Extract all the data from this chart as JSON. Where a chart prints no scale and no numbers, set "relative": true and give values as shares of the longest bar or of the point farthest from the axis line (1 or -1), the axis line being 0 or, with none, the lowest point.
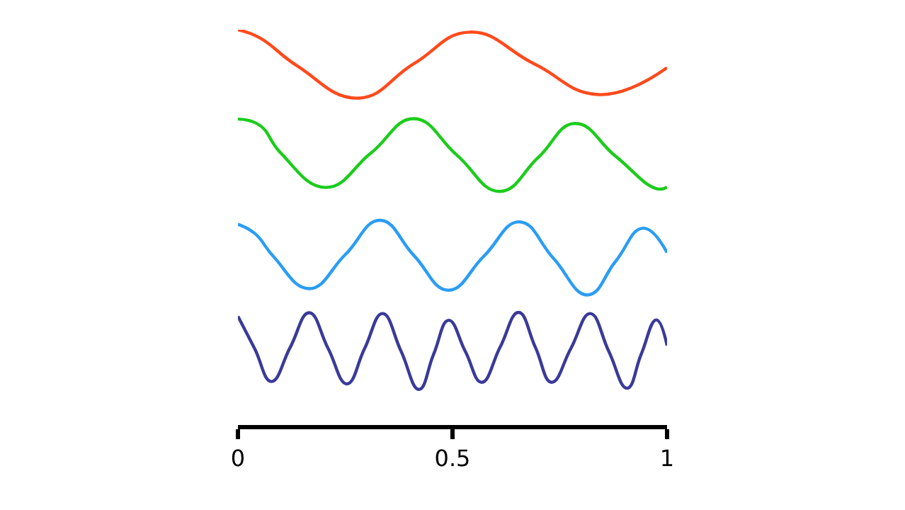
{
  "chart_data": {
    "type": "line",
    "relative": true,
    "xlim": [
      0,
      1
    ],
    "xticks": [
      0,
      0.5,
      1
    ],
    "tick_labels": "x",
    "series": [
      {
        "color": "#ff4a1c",
        "x": [
          0,
          0.05,
          0.139,
          0.28,
          0.41,
          0.54,
          0.69,
          0.84,
          1.0
        ],
        "values": [
          1.0,
          0.98,
          0.908,
          0.827,
          0.914,
          0.994,
          0.914,
          0.836,
          0.904
        ]
      },
      {
        "color": "#1ccc1c",
        "x": [
          0,
          0.05,
          0.1,
          0.205,
          0.31,
          0.41,
          0.51,
          0.61,
          0.7,
          0.785,
          0.88,
          0.975,
          1.0
        ],
        "values": [
          0.774,
          0.759,
          0.688,
          0.601,
          0.688,
          0.775,
          0.683,
          0.591,
          0.677,
          0.763,
          0.68,
          0.598,
          0.602
        ]
      },
      {
        "color": "#2a9df4",
        "x": [
          0,
          0.04,
          0.083,
          0.166,
          0.25,
          0.331,
          0.41,
          0.49,
          0.573,
          0.656,
          0.735,
          0.815,
          0.88,
          0.944,
          1.0
        ],
        "values": [
          0.508,
          0.484,
          0.426,
          0.345,
          0.431,
          0.518,
          0.429,
          0.341,
          0.427,
          0.514,
          0.422,
          0.329,
          0.414,
          0.498,
          0.436
        ]
      },
      {
        "color": "#3a3a9a",
        "x": [
          0,
          0.039,
          0.078,
          0.122,
          0.166,
          0.21,
          0.254,
          0.295,
          0.337,
          0.38,
          0.422,
          0.456,
          0.491,
          0.53,
          0.568,
          0.611,
          0.654,
          0.693,
          0.731,
          0.776,
          0.821,
          0.864,
          0.907,
          0.94,
          0.975,
          1.0
        ],
        "values": [
          0.275,
          0.193,
          0.11,
          0.197,
          0.284,
          0.194,
          0.104,
          0.193,
          0.282,
          0.187,
          0.09,
          0.179,
          0.265,
          0.186,
          0.108,
          0.197,
          0.285,
          0.197,
          0.108,
          0.194,
          0.282,
          0.187,
          0.093,
          0.18,
          0.266,
          0.201
        ]
      }
    ]
  }
}
